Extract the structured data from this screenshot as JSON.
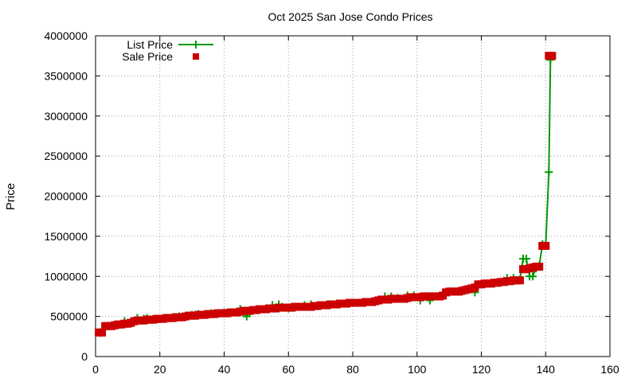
{
  "chart_data": {
    "type": "scatter",
    "title": "Oct 2025 San Jose Condo Prices",
    "xlabel": "",
    "ylabel": "Price",
    "xlim": [
      0,
      160
    ],
    "ylim": [
      0,
      4000000
    ],
    "x_ticks": [
      "0",
      "20",
      "40",
      "60",
      "80",
      "100",
      "120",
      "140",
      "160"
    ],
    "y_ticks": [
      "0",
      "500000",
      "1000000",
      "1500000",
      "2000000",
      "2500000",
      "3000000",
      "3500000",
      "4000000"
    ],
    "grid": "dotted",
    "legend_position": "top-left",
    "series": [
      {
        "name": "List Price",
        "style": "line+cross",
        "color": "#009900",
        "points": [
          [
            1,
            300000
          ],
          [
            2,
            320000
          ],
          [
            4,
            380000
          ],
          [
            6,
            390000
          ],
          [
            8,
            400000
          ],
          [
            9,
            440000
          ],
          [
            10,
            420000
          ],
          [
            12,
            440000
          ],
          [
            13,
            480000
          ],
          [
            15,
            470000
          ],
          [
            16,
            480000
          ],
          [
            18,
            460000
          ],
          [
            20,
            470000
          ],
          [
            22,
            480000
          ],
          [
            24,
            490000
          ],
          [
            26,
            500000
          ],
          [
            28,
            500000
          ],
          [
            30,
            520000
          ],
          [
            32,
            530000
          ],
          [
            34,
            520000
          ],
          [
            36,
            540000
          ],
          [
            38,
            540000
          ],
          [
            40,
            550000
          ],
          [
            42,
            550000
          ],
          [
            44,
            560000
          ],
          [
            45,
            590000
          ],
          [
            47,
            500000
          ],
          [
            48,
            560000
          ],
          [
            50,
            580000
          ],
          [
            52,
            590000
          ],
          [
            54,
            600000
          ],
          [
            55,
            640000
          ],
          [
            57,
            650000
          ],
          [
            58,
            620000
          ],
          [
            60,
            600000
          ],
          [
            62,
            610000
          ],
          [
            64,
            620000
          ],
          [
            65,
            640000
          ],
          [
            67,
            650000
          ],
          [
            68,
            630000
          ],
          [
            70,
            640000
          ],
          [
            72,
            640000
          ],
          [
            74,
            650000
          ],
          [
            76,
            660000
          ],
          [
            78,
            660000
          ],
          [
            80,
            670000
          ],
          [
            82,
            670000
          ],
          [
            84,
            680000
          ],
          [
            86,
            680000
          ],
          [
            88,
            700000
          ],
          [
            90,
            750000
          ],
          [
            92,
            750000
          ],
          [
            94,
            730000
          ],
          [
            96,
            720000
          ],
          [
            97,
            760000
          ],
          [
            99,
            760000
          ],
          [
            101,
            700000
          ],
          [
            102,
            740000
          ],
          [
            104,
            700000
          ],
          [
            106,
            750000
          ],
          [
            108,
            750000
          ],
          [
            110,
            810000
          ],
          [
            112,
            810000
          ],
          [
            114,
            820000
          ],
          [
            116,
            830000
          ],
          [
            118,
            800000
          ],
          [
            120,
            900000
          ],
          [
            122,
            910000
          ],
          [
            124,
            910000
          ],
          [
            126,
            920000
          ],
          [
            128,
            980000
          ],
          [
            130,
            980000
          ],
          [
            132,
            960000
          ],
          [
            133,
            1220000
          ],
          [
            134,
            1220000
          ],
          [
            135,
            1000000
          ],
          [
            136,
            1000000
          ],
          [
            137,
            1100000
          ],
          [
            138,
            1130000
          ],
          [
            139,
            1400000
          ],
          [
            140,
            1380000
          ],
          [
            141,
            2300000
          ],
          [
            141.5,
            3700000
          ],
          [
            142,
            3750000
          ]
        ]
      },
      {
        "name": "Sale Price",
        "style": "square",
        "color": "#cc0000",
        "points": [
          [
            1,
            300000
          ],
          [
            2,
            300000
          ],
          [
            3,
            380000
          ],
          [
            4,
            380000
          ],
          [
            5,
            380000
          ],
          [
            6,
            390000
          ],
          [
            7,
            400000
          ],
          [
            8,
            400000
          ],
          [
            9,
            410000
          ],
          [
            10,
            410000
          ],
          [
            11,
            420000
          ],
          [
            12,
            440000
          ],
          [
            13,
            450000
          ],
          [
            14,
            450000
          ],
          [
            15,
            450000
          ],
          [
            16,
            460000
          ],
          [
            17,
            460000
          ],
          [
            18,
            460000
          ],
          [
            19,
            470000
          ],
          [
            20,
            470000
          ],
          [
            21,
            470000
          ],
          [
            22,
            480000
          ],
          [
            23,
            480000
          ],
          [
            24,
            480000
          ],
          [
            25,
            490000
          ],
          [
            26,
            490000
          ],
          [
            27,
            490000
          ],
          [
            28,
            500000
          ],
          [
            29,
            510000
          ],
          [
            30,
            510000
          ],
          [
            31,
            510000
          ],
          [
            32,
            520000
          ],
          [
            33,
            520000
          ],
          [
            34,
            520000
          ],
          [
            35,
            530000
          ],
          [
            36,
            530000
          ],
          [
            37,
            530000
          ],
          [
            38,
            540000
          ],
          [
            39,
            540000
          ],
          [
            40,
            540000
          ],
          [
            41,
            540000
          ],
          [
            42,
            550000
          ],
          [
            43,
            550000
          ],
          [
            44,
            550000
          ],
          [
            45,
            560000
          ],
          [
            46,
            570000
          ],
          [
            47,
            570000
          ],
          [
            48,
            570000
          ],
          [
            49,
            580000
          ],
          [
            50,
            580000
          ],
          [
            51,
            590000
          ],
          [
            52,
            590000
          ],
          [
            53,
            590000
          ],
          [
            54,
            600000
          ],
          [
            55,
            600000
          ],
          [
            56,
            600000
          ],
          [
            57,
            610000
          ],
          [
            58,
            610000
          ],
          [
            59,
            610000
          ],
          [
            60,
            610000
          ],
          [
            61,
            610000
          ],
          [
            62,
            620000
          ],
          [
            63,
            620000
          ],
          [
            64,
            620000
          ],
          [
            65,
            620000
          ],
          [
            66,
            620000
          ],
          [
            67,
            620000
          ],
          [
            68,
            630000
          ],
          [
            69,
            630000
          ],
          [
            70,
            640000
          ],
          [
            71,
            640000
          ],
          [
            72,
            640000
          ],
          [
            73,
            650000
          ],
          [
            74,
            650000
          ],
          [
            75,
            650000
          ],
          [
            76,
            660000
          ],
          [
            77,
            660000
          ],
          [
            78,
            660000
          ],
          [
            79,
            670000
          ],
          [
            80,
            670000
          ],
          [
            81,
            670000
          ],
          [
            82,
            670000
          ],
          [
            83,
            670000
          ],
          [
            84,
            680000
          ],
          [
            85,
            680000
          ],
          [
            86,
            680000
          ],
          [
            87,
            690000
          ],
          [
            88,
            700000
          ],
          [
            89,
            710000
          ],
          [
            90,
            710000
          ],
          [
            91,
            710000
          ],
          [
            92,
            720000
          ],
          [
            93,
            720000
          ],
          [
            94,
            720000
          ],
          [
            95,
            720000
          ],
          [
            96,
            720000
          ],
          [
            97,
            730000
          ],
          [
            98,
            740000
          ],
          [
            99,
            740000
          ],
          [
            100,
            740000
          ],
          [
            101,
            740000
          ],
          [
            102,
            750000
          ],
          [
            103,
            750000
          ],
          [
            104,
            750000
          ],
          [
            105,
            750000
          ],
          [
            106,
            750000
          ],
          [
            107,
            750000
          ],
          [
            108,
            760000
          ],
          [
            109,
            800000
          ],
          [
            110,
            810000
          ],
          [
            111,
            810000
          ],
          [
            112,
            810000
          ],
          [
            113,
            810000
          ],
          [
            114,
            820000
          ],
          [
            115,
            830000
          ],
          [
            116,
            840000
          ],
          [
            117,
            850000
          ],
          [
            118,
            860000
          ],
          [
            119,
            900000
          ],
          [
            120,
            900000
          ],
          [
            121,
            910000
          ],
          [
            122,
            910000
          ],
          [
            123,
            910000
          ],
          [
            124,
            920000
          ],
          [
            125,
            920000
          ],
          [
            126,
            930000
          ],
          [
            127,
            930000
          ],
          [
            128,
            940000
          ],
          [
            129,
            940000
          ],
          [
            130,
            950000
          ],
          [
            131,
            950000
          ],
          [
            132,
            950000
          ],
          [
            133,
            1090000
          ],
          [
            134,
            1090000
          ],
          [
            135,
            1100000
          ],
          [
            136,
            1110000
          ],
          [
            137,
            1120000
          ],
          [
            138,
            1120000
          ],
          [
            139,
            1380000
          ],
          [
            140,
            1380000
          ],
          [
            141,
            3750000
          ],
          [
            142,
            3750000
          ]
        ]
      }
    ]
  }
}
